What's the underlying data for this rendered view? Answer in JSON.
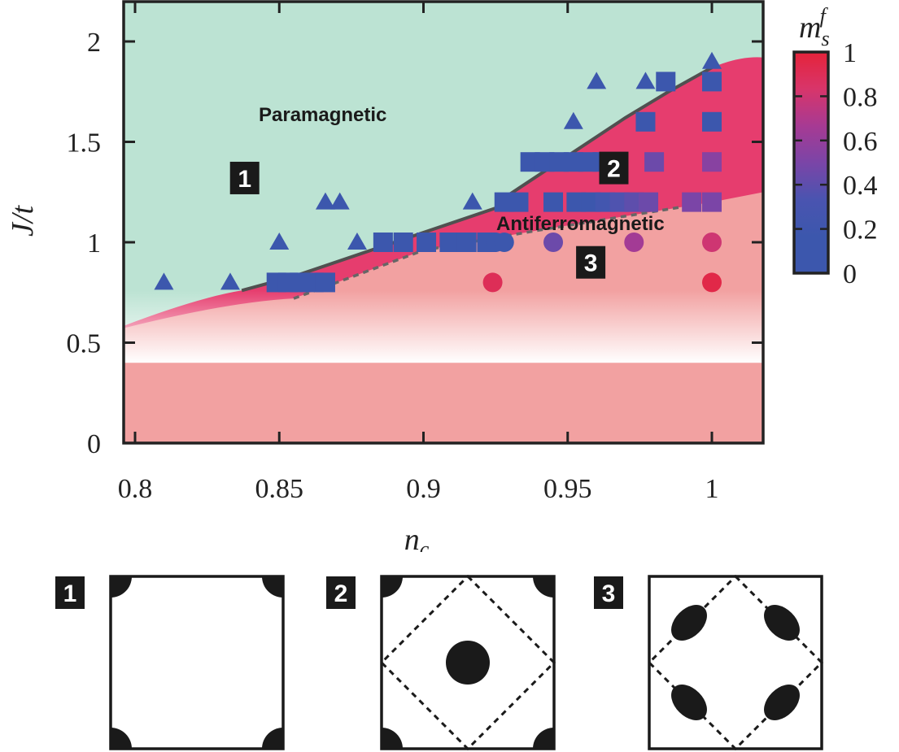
{
  "chart_data": {
    "type": "scatter",
    "xlabel": "n_c",
    "ylabel": "J/t",
    "xlim": [
      0.8,
      1.02
    ],
    "ylim": [
      0,
      2.2
    ],
    "x_ticks": [
      "0.8",
      "0.85",
      "0.9",
      "0.95",
      "1"
    ],
    "y_ticks": [
      "0",
      "0.5",
      "1",
      "1.5",
      "2"
    ],
    "grid": false,
    "region_labels": [
      "Paramagnetic",
      "Antiferromagnetic"
    ],
    "region_badges": [
      {
        "label": "1",
        "x": 0.838,
        "y": 1.32
      },
      {
        "label": "2",
        "x": 0.966,
        "y": 1.37
      },
      {
        "label": "3",
        "x": 0.958,
        "y": 0.9
      }
    ],
    "colorbar": {
      "label": "m_s^f",
      "ticks": [
        "0",
        "0.2",
        "0.4",
        "0.6",
        "0.8",
        "1"
      ],
      "range": [
        0,
        1
      ],
      "stops": [
        "#3c57ad",
        "#3c57ad",
        "#4a54b0",
        "#7b45a7",
        "#a73a93",
        "#d8356a",
        "#e5233a"
      ]
    },
    "colors": {
      "paramagnetic": "#bce3d3",
      "antiferro_upper": "#e63d6e",
      "antiferro_lower": "#f2a1a1",
      "marker_blue": "#3c57ad",
      "boundary": "#505050"
    },
    "phase_boundary": [
      [
        0.837,
        0.76
      ],
      [
        0.855,
        0.83
      ],
      [
        0.925,
        1.17
      ],
      [
        0.93,
        1.24
      ],
      [
        0.95,
        1.43
      ],
      [
        0.97,
        1.62
      ],
      [
        0.985,
        1.75
      ],
      [
        1.0,
        1.87
      ]
    ],
    "dashed_boundary": [
      [
        0.855,
        0.72
      ],
      [
        0.9,
        0.96
      ],
      [
        0.94,
        1.06
      ],
      [
        0.97,
        1.13
      ],
      [
        1.0,
        1.2
      ]
    ],
    "series": [
      {
        "marker": "triangle",
        "points": [
          {
            "x": 0.81,
            "y": 0.8,
            "m": 0.05
          },
          {
            "x": 0.833,
            "y": 0.8,
            "m": 0.05
          },
          {
            "x": 0.85,
            "y": 1.0,
            "m": 0.05
          },
          {
            "x": 0.866,
            "y": 1.2,
            "m": 0.05
          },
          {
            "x": 0.871,
            "y": 1.2,
            "m": 0.05
          },
          {
            "x": 0.877,
            "y": 1.0,
            "m": 0.05
          },
          {
            "x": 0.917,
            "y": 1.2,
            "m": 0.05
          },
          {
            "x": 0.952,
            "y": 1.6,
            "m": 0.05
          },
          {
            "x": 0.96,
            "y": 1.8,
            "m": 0.05
          },
          {
            "x": 0.977,
            "y": 1.8,
            "m": 0.05
          },
          {
            "x": 1.0,
            "y": 1.9,
            "m": 0.05
          }
        ]
      },
      {
        "marker": "square",
        "points": [
          {
            "x": 0.849,
            "y": 0.8,
            "m": 0.05
          },
          {
            "x": 0.853,
            "y": 0.8,
            "m": 0.05
          },
          {
            "x": 0.857,
            "y": 0.8,
            "m": 0.05
          },
          {
            "x": 0.862,
            "y": 0.8,
            "m": 0.05
          },
          {
            "x": 0.866,
            "y": 0.8,
            "m": 0.05
          },
          {
            "x": 0.886,
            "y": 1.0,
            "m": 0.05
          },
          {
            "x": 0.893,
            "y": 1.0,
            "m": 0.05
          },
          {
            "x": 0.901,
            "y": 1.0,
            "m": 0.05
          },
          {
            "x": 0.909,
            "y": 1.0,
            "m": 0.05
          },
          {
            "x": 0.915,
            "y": 1.0,
            "m": 0.05
          },
          {
            "x": 0.922,
            "y": 1.0,
            "m": 0.05
          },
          {
            "x": 0.928,
            "y": 1.2,
            "m": 0.05
          },
          {
            "x": 0.933,
            "y": 1.2,
            "m": 0.05
          },
          {
            "x": 0.945,
            "y": 1.2,
            "m": 0.05
          },
          {
            "x": 0.953,
            "y": 1.2,
            "m": 0.05
          },
          {
            "x": 0.958,
            "y": 1.2,
            "m": 0.15
          },
          {
            "x": 0.963,
            "y": 1.2,
            "m": 0.25
          },
          {
            "x": 0.968,
            "y": 1.2,
            "m": 0.35
          },
          {
            "x": 0.973,
            "y": 1.2,
            "m": 0.4
          },
          {
            "x": 0.978,
            "y": 1.2,
            "m": 0.45
          },
          {
            "x": 0.993,
            "y": 1.2,
            "m": 0.5
          },
          {
            "x": 1.0,
            "y": 1.2,
            "m": 0.5
          },
          {
            "x": 0.937,
            "y": 1.4,
            "m": 0.05
          },
          {
            "x": 0.942,
            "y": 1.4,
            "m": 0.05
          },
          {
            "x": 0.947,
            "y": 1.4,
            "m": 0.05
          },
          {
            "x": 0.952,
            "y": 1.4,
            "m": 0.05
          },
          {
            "x": 0.957,
            "y": 1.4,
            "m": 0.05
          },
          {
            "x": 0.962,
            "y": 1.4,
            "m": 0.05
          },
          {
            "x": 0.967,
            "y": 1.4,
            "m": 0.15
          },
          {
            "x": 0.98,
            "y": 1.4,
            "m": 0.45
          },
          {
            "x": 1.0,
            "y": 1.4,
            "m": 0.55
          },
          {
            "x": 0.977,
            "y": 1.6,
            "m": 0.05
          },
          {
            "x": 1.0,
            "y": 1.6,
            "m": 0.15
          },
          {
            "x": 0.984,
            "y": 1.8,
            "m": 0.05
          },
          {
            "x": 1.0,
            "y": 1.8,
            "m": 0.05
          }
        ]
      },
      {
        "marker": "circle",
        "points": [
          {
            "x": 0.925,
            "y": 1.0,
            "m": 0.05
          },
          {
            "x": 0.928,
            "y": 1.0,
            "m": 0.1
          },
          {
            "x": 0.945,
            "y": 1.0,
            "m": 0.45
          },
          {
            "x": 0.973,
            "y": 1.0,
            "m": 0.65
          },
          {
            "x": 1.0,
            "y": 1.0,
            "m": 0.8
          },
          {
            "x": 0.924,
            "y": 0.8,
            "m": 0.9
          },
          {
            "x": 1.0,
            "y": 0.8,
            "m": 0.95
          }
        ]
      }
    ],
    "insets": [
      {
        "label": "1",
        "corner_pockets": true,
        "dashed_diamond": false,
        "center_pocket": false,
        "ellipse_pockets": false
      },
      {
        "label": "2",
        "corner_pockets": true,
        "dashed_diamond": true,
        "center_pocket": true,
        "ellipse_pockets": false
      },
      {
        "label": "3",
        "corner_pockets": false,
        "dashed_diamond": true,
        "center_pocket": false,
        "ellipse_pockets": true
      }
    ]
  }
}
